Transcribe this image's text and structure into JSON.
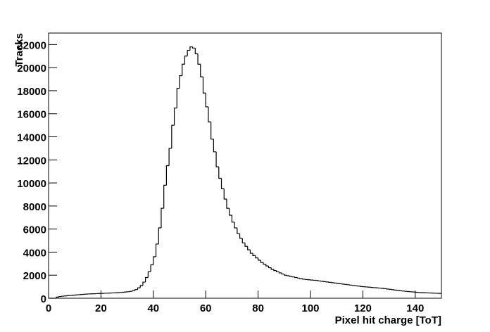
{
  "chart_data": {
    "type": "histogram",
    "x_label": "Pixel hit charge [ToT]",
    "y_label": "Tracks",
    "color": "#000000",
    "bins": [
      0,
      1,
      2,
      3,
      4,
      5,
      6,
      7,
      8,
      9,
      10,
      11,
      12,
      13,
      14,
      15,
      16,
      17,
      18,
      19,
      20,
      21,
      22,
      23,
      24,
      25,
      26,
      27,
      28,
      29,
      30,
      31,
      32,
      33,
      34,
      35,
      36,
      37,
      38,
      39,
      40,
      41,
      42,
      43,
      44,
      45,
      46,
      47,
      48,
      49,
      50,
      51,
      52,
      53,
      54,
      55,
      56,
      57,
      58,
      59,
      60,
      61,
      62,
      63,
      64,
      65,
      66,
      67,
      68,
      69,
      70,
      71,
      72,
      73,
      74,
      75,
      76,
      77,
      78,
      79,
      80,
      81,
      82,
      83,
      84,
      85,
      86,
      87,
      88,
      89,
      90,
      91,
      92,
      93,
      94,
      95,
      96,
      97,
      98,
      99,
      100,
      101,
      102,
      103,
      104,
      105,
      106,
      107,
      108,
      109,
      110,
      111,
      112,
      113,
      114,
      115,
      116,
      117,
      118,
      119,
      120,
      121,
      122,
      123,
      124,
      125,
      126,
      127,
      128,
      129,
      130,
      131,
      132,
      133,
      134,
      135,
      136,
      137,
      138,
      139,
      140,
      141,
      142,
      143,
      144,
      145,
      146,
      147,
      148,
      149,
      150
    ],
    "values": [
      0,
      0,
      0,
      100,
      150,
      180,
      200,
      220,
      240,
      260,
      280,
      300,
      320,
      340,
      360,
      370,
      380,
      390,
      400,
      410,
      420,
      430,
      440,
      450,
      460,
      470,
      480,
      500,
      520,
      540,
      560,
      600,
      650,
      750,
      900,
      1100,
      1400,
      1800,
      2300,
      2900,
      3600,
      4700,
      6100,
      7800,
      9800,
      11500,
      13000,
      15000,
      16500,
      18200,
      19300,
      20300,
      21000,
      21500,
      21800,
      21700,
      21200,
      20300,
      19200,
      17800,
      16600,
      15300,
      13800,
      12700,
      11400,
      10400,
      9500,
      8600,
      7800,
      7200,
      6600,
      6100,
      5600,
      5200,
      4800,
      4500,
      4200,
      3900,
      3700,
      3500,
      3300,
      3100,
      2950,
      2800,
      2650,
      2500,
      2400,
      2300,
      2200,
      2100,
      2000,
      1950,
      1900,
      1850,
      1800,
      1750,
      1700,
      1650,
      1620,
      1600,
      1580,
      1560,
      1540,
      1500,
      1470,
      1440,
      1410,
      1380,
      1350,
      1320,
      1290,
      1260,
      1230,
      1200,
      1170,
      1140,
      1110,
      1080,
      1050,
      1020,
      1000,
      980,
      960,
      940,
      920,
      900,
      880,
      860,
      830,
      800,
      770,
      740,
      710,
      680,
      650,
      620,
      600,
      580,
      560,
      540,
      520,
      500,
      490,
      480,
      470,
      460,
      450,
      440,
      430,
      420
    ],
    "xlim": [
      0,
      150
    ],
    "ylim": [
      0,
      23000
    ],
    "xticks": [
      0,
      20,
      40,
      60,
      80,
      100,
      120,
      140
    ],
    "yticks": [
      0,
      2000,
      4000,
      6000,
      8000,
      10000,
      12000,
      14000,
      16000,
      18000,
      20000,
      22000
    ]
  }
}
